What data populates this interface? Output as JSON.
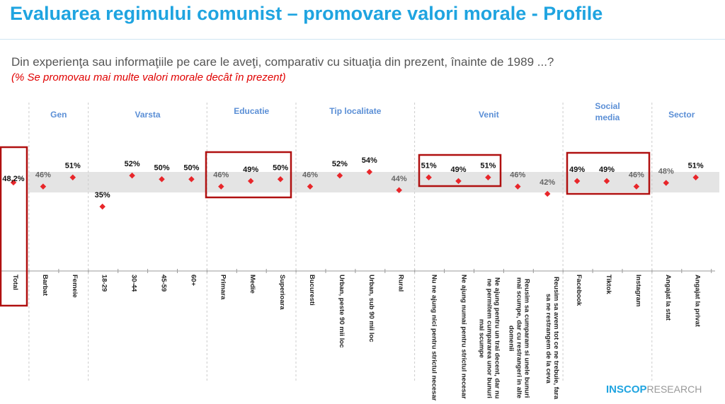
{
  "title": "Evaluarea regimului comunist – promovare valori morale - Profile",
  "question": "Din experienţa sau informaţiile pe care le aveţi, comparativ cu situaţia din prezent, înainte de 1989 ...?",
  "note": "(% Se promovau mai multe valori morale decât în prezent)",
  "logo": {
    "bold": "INSCOP",
    "light": "RESEARCH"
  },
  "chart_data": {
    "type": "scatter",
    "title": "Evaluarea regimului comunist – promovare valori morale - Profile",
    "groups": [
      {
        "name": "",
        "members": [
          0
        ]
      },
      {
        "name": "Gen",
        "members": [
          1,
          2
        ]
      },
      {
        "name": "Varsta",
        "members": [
          3,
          4,
          5,
          6
        ]
      },
      {
        "name": "Educatie",
        "members": [
          7,
          8,
          9
        ]
      },
      {
        "name": "Tip localitate",
        "members": [
          10,
          11,
          12,
          13
        ]
      },
      {
        "name": "Venit",
        "members": [
          14,
          15,
          16,
          17,
          18
        ]
      },
      {
        "name": "Social media",
        "members": [
          19,
          20,
          21
        ]
      },
      {
        "name": "Sector",
        "members": [
          22,
          23
        ]
      }
    ],
    "categories": [
      "Total",
      "Barbat",
      "Femeie",
      "18-29",
      "30-44",
      "45-59",
      "60+",
      "Primara",
      "Medie",
      "Superioara",
      "Bucuresti",
      "Urban, peste 90 mii loc",
      "Urban, sub 90 mii loc",
      "Rural",
      "Nu ne ajung nici pentru strictul necesar",
      "Ne ajung numai pentru strictul necesar",
      "Ne ajung pentru un trai decent, dar nu ne permitem cumpararea unor bunuri mai scumpe",
      "Reusim sa cumparam si unele bunuri mai scumpe, dar cu restrangeri in alte domenii",
      "Reusim sa avem tot ce ne trebuie, fara sa ne restrangem de la ceva",
      "Facebook",
      "Tiktok",
      "Instagram",
      "Angajat la stat",
      "Angajat la privat"
    ],
    "values": [
      48.2,
      46,
      51,
      35,
      52,
      50,
      50,
      46,
      49,
      50,
      46,
      52,
      54,
      44,
      51,
      49,
      51,
      46,
      42,
      49,
      49,
      46,
      48,
      51
    ],
    "labels": [
      "48,2%",
      "46%",
      "51%",
      "35%",
      "52%",
      "50%",
      "50%",
      "46%",
      "49%",
      "50%",
      "46%",
      "52%",
      "54%",
      "44%",
      "51%",
      "49%",
      "51%",
      "46%",
      "42%",
      "49%",
      "49%",
      "46%",
      "48%",
      "51%"
    ],
    "ylim": [
      35,
      54
    ],
    "highlighted": [
      "Total",
      "Educatie",
      "Venit 1-3",
      "Social media"
    ],
    "colors": {
      "point": "#e8262a",
      "above": "#111111",
      "below": "#666666",
      "band": "#e4e4e4",
      "box": "#b01010"
    }
  }
}
